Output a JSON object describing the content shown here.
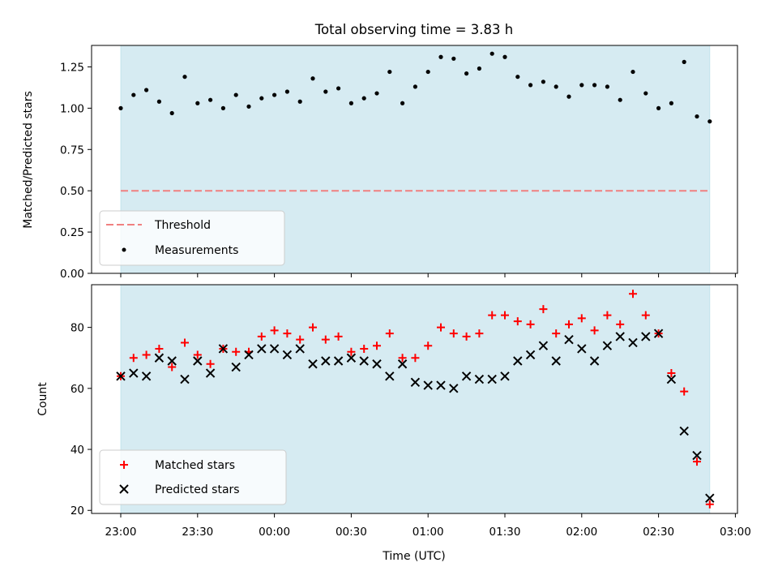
{
  "chart_data": [
    {
      "type": "scatter",
      "title": "Total observing time = 3.83 h",
      "xlabel": "",
      "ylabel": "Matched/Predicted stars",
      "ylim": [
        0.0,
        1.38
      ],
      "yticks": [
        "0.00",
        "0.25",
        "0.50",
        "0.75",
        "1.00",
        "1.25"
      ],
      "shaded_span": [
        "23:00",
        "02:50"
      ],
      "threshold": {
        "name": "Threshold",
        "value": 0.5,
        "color": "#f08080"
      },
      "legend": "lower-left",
      "series": [
        {
          "name": "Measurements",
          "color": "#000000",
          "marker": "dot",
          "x": [
            "23:00",
            "23:05",
            "23:10",
            "23:15",
            "23:20",
            "23:25",
            "23:30",
            "23:35",
            "23:40",
            "23:45",
            "23:50",
            "23:55",
            "00:00",
            "00:05",
            "00:10",
            "00:15",
            "00:20",
            "00:25",
            "00:30",
            "00:35",
            "00:40",
            "00:45",
            "00:50",
            "00:55",
            "01:00",
            "01:05",
            "01:10",
            "01:15",
            "01:20",
            "01:25",
            "01:30",
            "01:35",
            "01:40",
            "01:45",
            "01:50",
            "01:55",
            "02:00",
            "02:05",
            "02:10",
            "02:15",
            "02:20",
            "02:25",
            "02:30",
            "02:35",
            "02:40",
            "02:45",
            "02:50"
          ],
          "values": [
            1.0,
            1.08,
            1.11,
            1.04,
            0.97,
            1.19,
            1.03,
            1.05,
            1.0,
            1.08,
            1.01,
            1.06,
            1.08,
            1.1,
            1.04,
            1.18,
            1.1,
            1.12,
            1.03,
            1.06,
            1.09,
            1.22,
            1.03,
            1.13,
            1.22,
            1.31,
            1.3,
            1.21,
            1.24,
            1.33,
            1.31,
            1.19,
            1.14,
            1.16,
            1.13,
            1.07,
            1.14,
            1.14,
            1.13,
            1.05,
            1.22,
            1.09,
            1.0,
            1.03,
            1.28,
            0.95,
            0.92
          ]
        }
      ]
    },
    {
      "type": "scatter",
      "title": "",
      "xlabel": "Time (UTC)",
      "ylabel": "Count",
      "ylim": [
        19,
        94
      ],
      "yticks": [
        "20",
        "40",
        "60",
        "80"
      ],
      "xticks": [
        "23:00",
        "23:30",
        "00:00",
        "00:30",
        "01:00",
        "01:30",
        "02:00",
        "02:30",
        "03:00"
      ],
      "shaded_span": [
        "23:00",
        "02:50"
      ],
      "legend": "lower-left",
      "series": [
        {
          "name": "Matched stars",
          "color": "#ff0000",
          "marker": "plus",
          "x": [
            "23:00",
            "23:05",
            "23:10",
            "23:15",
            "23:20",
            "23:25",
            "23:30",
            "23:35",
            "23:40",
            "23:45",
            "23:50",
            "23:55",
            "00:00",
            "00:05",
            "00:10",
            "00:15",
            "00:20",
            "00:25",
            "00:30",
            "00:35",
            "00:40",
            "00:45",
            "00:50",
            "00:55",
            "01:00",
            "01:05",
            "01:10",
            "01:15",
            "01:20",
            "01:25",
            "01:30",
            "01:35",
            "01:40",
            "01:45",
            "01:50",
            "01:55",
            "02:00",
            "02:05",
            "02:10",
            "02:15",
            "02:20",
            "02:25",
            "02:30",
            "02:35",
            "02:40",
            "02:45",
            "02:50"
          ],
          "values": [
            64,
            70,
            71,
            73,
            67,
            75,
            71,
            68,
            73,
            72,
            72,
            77,
            79,
            78,
            76,
            80,
            76,
            77,
            72,
            73,
            74,
            78,
            70,
            70,
            74,
            80,
            78,
            77,
            78,
            84,
            84,
            82,
            81,
            86,
            78,
            81,
            83,
            79,
            84,
            81,
            91,
            84,
            78,
            65,
            59,
            36,
            22
          ]
        },
        {
          "name": "Predicted stars",
          "color": "#000000",
          "marker": "cross",
          "x": [
            "23:00",
            "23:05",
            "23:10",
            "23:15",
            "23:20",
            "23:25",
            "23:30",
            "23:35",
            "23:40",
            "23:45",
            "23:50",
            "23:55",
            "00:00",
            "00:05",
            "00:10",
            "00:15",
            "00:20",
            "00:25",
            "00:30",
            "00:35",
            "00:40",
            "00:45",
            "00:50",
            "00:55",
            "01:00",
            "01:05",
            "01:10",
            "01:15",
            "01:20",
            "01:25",
            "01:30",
            "01:35",
            "01:40",
            "01:45",
            "01:50",
            "01:55",
            "02:00",
            "02:05",
            "02:10",
            "02:15",
            "02:20",
            "02:25",
            "02:30",
            "02:35",
            "02:40",
            "02:45",
            "02:50"
          ],
          "values": [
            64,
            65,
            64,
            70,
            69,
            63,
            69,
            65,
            73,
            67,
            71,
            73,
            73,
            71,
            73,
            68,
            69,
            69,
            70,
            69,
            68,
            64,
            68,
            62,
            61,
            61,
            60,
            64,
            63,
            63,
            64,
            69,
            71,
            74,
            69,
            76,
            73,
            69,
            74,
            77,
            75,
            77,
            78,
            63,
            46,
            38,
            24
          ]
        }
      ]
    }
  ]
}
